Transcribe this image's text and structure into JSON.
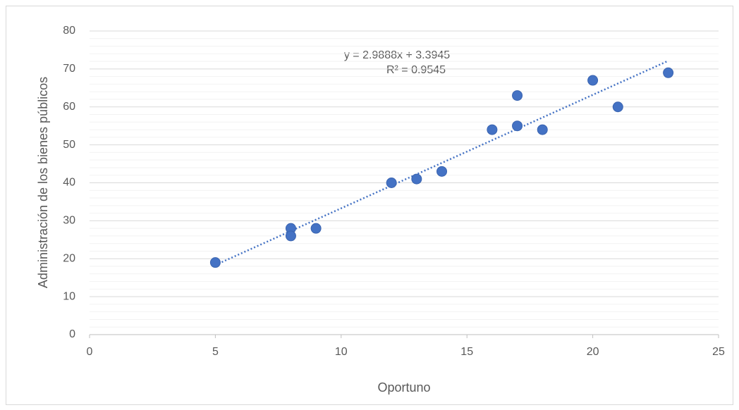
{
  "chart_data": {
    "type": "scatter",
    "x_label": "Oportuno",
    "y_label": "Administración de los bienes públicos",
    "series": [
      {
        "color": "#4472c4",
        "x": [
          5,
          8,
          8,
          9,
          12,
          13,
          14,
          16,
          17,
          17,
          18,
          20,
          21,
          23
        ],
        "values": [
          19,
          28,
          26,
          28,
          40,
          41,
          43,
          54,
          55,
          63,
          54,
          67,
          60,
          69
        ]
      }
    ],
    "trendline": {
      "slope": 2.9888,
      "intercept": 3.3945,
      "equation": "y = 2.9888x + 3.3945",
      "r_squared": "R² = 0.9545"
    },
    "xlim": [
      0,
      25
    ],
    "xticks": [
      0,
      5,
      10,
      15,
      20,
      25
    ],
    "ylim": [
      0,
      80
    ],
    "yticks": [
      0,
      10,
      20,
      30,
      40,
      50,
      60,
      70,
      80
    ],
    "grid": true,
    "minor_grid": true
  }
}
